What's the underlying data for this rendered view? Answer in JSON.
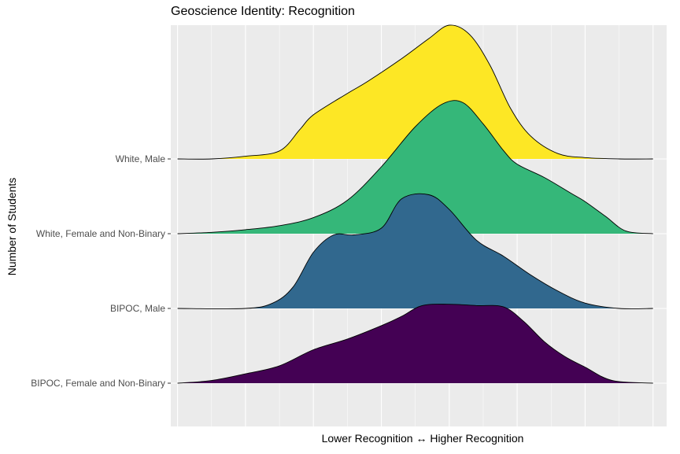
{
  "chart_data": {
    "type": "area",
    "subtype": "ridgeline",
    "title": "Geoscience Identity: Recognition",
    "xlabel": "Lower Recognition ↔ Higher Recognition",
    "ylabel": "Number of Students",
    "xlim": [
      -0.1,
      7.2
    ],
    "grid": true,
    "legend": "none",
    "categories": [
      "White, Male",
      "White, Female and Non-Binary",
      "BIPOC, Male",
      "BIPOC, Female and Non-Binary"
    ],
    "series": [
      {
        "name": "White, Male",
        "color": "#FDE725",
        "x": [
          0,
          0.5,
          1,
          1.5,
          1.8,
          2.0,
          2.5,
          2.8,
          3.3,
          3.7,
          4.0,
          4.3,
          4.6,
          4.9,
          5.2,
          5.6,
          6.0,
          6.5,
          7.0
        ],
        "density": [
          0,
          0,
          0.02,
          0.06,
          0.22,
          0.33,
          0.49,
          0.58,
          0.75,
          0.9,
          1.0,
          0.93,
          0.7,
          0.38,
          0.17,
          0.04,
          0.01,
          0,
          0
        ]
      },
      {
        "name": "White, Female and Non-Binary",
        "color": "#35B779",
        "x": [
          0,
          0.5,
          1.0,
          1.5,
          2.0,
          2.5,
          3.0,
          3.5,
          3.9,
          4.2,
          4.5,
          4.8,
          5.0,
          5.4,
          5.8,
          6.0,
          6.3,
          6.6,
          7.0
        ],
        "density": [
          0,
          0.01,
          0.03,
          0.06,
          0.12,
          0.25,
          0.5,
          0.8,
          0.97,
          0.98,
          0.82,
          0.62,
          0.52,
          0.42,
          0.3,
          0.24,
          0.13,
          0.02,
          0
        ]
      },
      {
        "name": "BIPOC, Male",
        "color": "#31688E",
        "x": [
          0,
          1.0,
          1.4,
          1.7,
          2.0,
          2.3,
          2.6,
          3.0,
          3.3,
          3.7,
          4.0,
          4.4,
          4.8,
          5.2,
          5.6,
          6.0,
          6.5,
          7.0
        ],
        "density": [
          0,
          0,
          0.04,
          0.16,
          0.42,
          0.55,
          0.55,
          0.6,
          0.82,
          0.85,
          0.74,
          0.51,
          0.39,
          0.25,
          0.13,
          0.04,
          0,
          0
        ]
      },
      {
        "name": "BIPOC, Female and Non-Binary",
        "color": "#440154",
        "x": [
          0,
          0.5,
          1.0,
          1.5,
          2.0,
          2.5,
          3.0,
          3.3,
          3.6,
          4.0,
          4.4,
          4.8,
          5.1,
          5.4,
          5.7,
          6.0,
          6.4,
          7.0
        ],
        "density": [
          0,
          0.02,
          0.07,
          0.13,
          0.25,
          0.33,
          0.43,
          0.5,
          0.58,
          0.59,
          0.58,
          0.57,
          0.46,
          0.31,
          0.2,
          0.12,
          0.02,
          0
        ]
      }
    ]
  }
}
